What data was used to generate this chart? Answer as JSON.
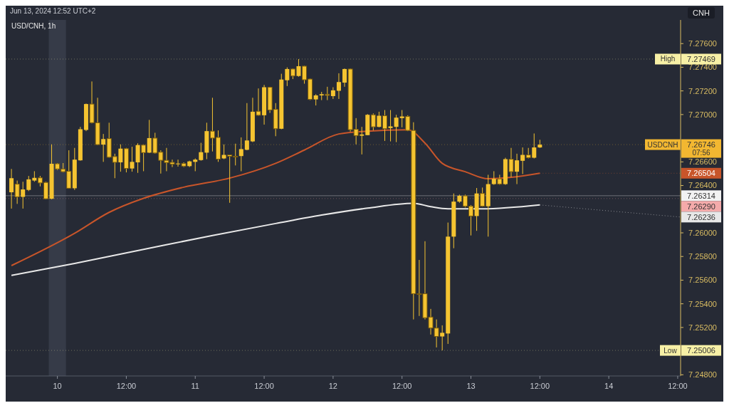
{
  "chart_data": {
    "type": "candlestick",
    "title": "USD/CNH, 1h",
    "subtitle": "Jun 13, 2024 12:52 UTC+2",
    "ylabel": "CNH",
    "color": "#f5c431",
    "x": [
      "2024-06-09T16:00",
      "2024-06-09T17:00",
      "2024-06-09T18:00",
      "2024-06-09T19:00",
      "2024-06-09T20:00",
      "2024-06-09T21:00",
      "2024-06-09T22:00",
      "2024-06-09T23:00",
      "2024-06-10T00:00",
      "2024-06-10T01:00",
      "2024-06-10T02:00",
      "2024-06-10T03:00",
      "2024-06-10T04:00",
      "2024-06-10T05:00",
      "2024-06-10T06:00",
      "2024-06-10T07:00",
      "2024-06-10T08:00",
      "2024-06-10T09:00",
      "2024-06-10T10:00",
      "2024-06-10T11:00",
      "2024-06-10T12:00",
      "2024-06-10T13:00",
      "2024-06-10T14:00",
      "2024-06-10T15:00",
      "2024-06-10T16:00",
      "2024-06-10T17:00",
      "2024-06-10T18:00",
      "2024-06-10T19:00",
      "2024-06-10T20:00",
      "2024-06-10T21:00",
      "2024-06-10T22:00",
      "2024-06-10T23:00",
      "2024-06-11T00:00",
      "2024-06-11T01:00",
      "2024-06-11T02:00",
      "2024-06-11T03:00",
      "2024-06-11T04:00",
      "2024-06-11T05:00",
      "2024-06-11T06:00",
      "2024-06-11T07:00",
      "2024-06-11T08:00",
      "2024-06-11T09:00",
      "2024-06-11T10:00",
      "2024-06-11T11:00",
      "2024-06-11T12:00",
      "2024-06-11T13:00",
      "2024-06-11T14:00",
      "2024-06-11T15:00",
      "2024-06-11T16:00",
      "2024-06-11T17:00",
      "2024-06-11T18:00",
      "2024-06-11T19:00",
      "2024-06-11T20:00",
      "2024-06-11T21:00",
      "2024-06-11T22:00",
      "2024-06-11T23:00",
      "2024-06-12T00:00",
      "2024-06-12T01:00",
      "2024-06-12T02:00",
      "2024-06-12T03:00",
      "2024-06-12T04:00",
      "2024-06-12T05:00",
      "2024-06-12T06:00",
      "2024-06-12T07:00",
      "2024-06-12T08:00",
      "2024-06-12T09:00",
      "2024-06-12T10:00",
      "2024-06-12T11:00",
      "2024-06-12T12:00",
      "2024-06-12T13:00",
      "2024-06-12T14:00",
      "2024-06-12T15:00",
      "2024-06-12T16:00",
      "2024-06-12T17:00",
      "2024-06-12T18:00",
      "2024-06-12T19:00",
      "2024-06-12T20:00",
      "2024-06-12T21:00",
      "2024-06-12T22:00",
      "2024-06-12T23:00",
      "2024-06-13T00:00",
      "2024-06-13T01:00",
      "2024-06-13T02:00",
      "2024-06-13T03:00",
      "2024-06-13T04:00",
      "2024-06-13T05:00",
      "2024-06-13T06:00",
      "2024-06-13T07:00",
      "2024-06-13T08:00",
      "2024-06-13T09:00",
      "2024-06-13T10:00",
      "2024-06-13T11:00",
      "2024-06-13T12:00"
    ],
    "ohlc": [
      [
        7.26343,
        7.2654,
        7.26205,
        7.26462
      ],
      [
        7.26412,
        7.26442,
        7.26245,
        7.26304
      ],
      [
        7.26304,
        7.26432,
        7.26205,
        7.26367
      ],
      [
        7.26363,
        7.26481,
        7.26353,
        7.26452
      ],
      [
        7.26442,
        7.26521,
        7.26432,
        7.26465
      ],
      [
        7.26465,
        7.26481,
        7.26393,
        7.26422
      ],
      [
        7.26426,
        7.26432,
        7.26284,
        7.26288
      ],
      [
        7.26288,
        7.26748,
        7.26284,
        7.26584
      ],
      [
        7.26584,
        7.2659,
        7.26531,
        7.2654
      ],
      [
        7.2654,
        7.2659,
        7.26511,
        7.26517
      ],
      [
        7.26521,
        7.26698,
        7.26373,
        7.26377
      ],
      [
        7.26377,
        7.26718,
        7.26363,
        7.26619
      ],
      [
        7.26613,
        7.26896,
        7.2661,
        7.26876
      ],
      [
        7.2687,
        7.27093,
        7.2686,
        7.27089
      ],
      [
        7.27089,
        7.2728,
        7.26925,
        7.26931
      ],
      [
        7.26931,
        7.27142,
        7.26742,
        7.26746
      ],
      [
        7.26746,
        7.26836,
        7.266,
        7.26793
      ],
      [
        7.26797,
        7.26931,
        7.26635,
        7.26639
      ],
      [
        7.26645,
        7.26669,
        7.26462,
        7.26596
      ],
      [
        7.26596,
        7.26748,
        7.26517,
        7.26712
      ],
      [
        7.26712,
        7.26718,
        7.26511,
        7.26544
      ],
      [
        7.26544,
        7.26728,
        7.26517,
        7.266
      ],
      [
        7.26596,
        7.26757,
        7.26507,
        7.26742
      ],
      [
        7.26742,
        7.26748,
        7.26521,
        7.26678
      ],
      [
        7.26678,
        7.26955,
        7.26675,
        7.26801
      ],
      [
        7.26801,
        7.26846,
        7.26669,
        7.26675
      ],
      [
        7.26682,
        7.26698,
        7.26501,
        7.26613
      ],
      [
        7.26613,
        7.26718,
        7.26521,
        7.26594
      ],
      [
        7.26596,
        7.26619,
        7.26556,
        7.2658
      ],
      [
        7.2658,
        7.26619,
        7.2656,
        7.26586
      ],
      [
        7.26586,
        7.26596,
        7.26556,
        7.26564
      ],
      [
        7.26564,
        7.2661,
        7.26556,
        7.26604
      ],
      [
        7.266,
        7.26629,
        7.26521,
        7.26619
      ],
      [
        7.26615,
        7.26761,
        7.2661,
        7.26682
      ],
      [
        7.26678,
        7.26931,
        7.26623,
        7.2686
      ],
      [
        7.2686,
        7.27142,
        7.26688,
        7.26801
      ],
      [
        7.26807,
        7.26866,
        7.266,
        7.26623
      ],
      [
        7.26629,
        7.26748,
        7.26623,
        7.26659
      ],
      [
        7.26659,
        7.26659,
        7.26254,
        7.26647
      ],
      [
        7.26647,
        7.26754,
        7.2657,
        7.26643
      ],
      [
        7.26649,
        7.26807,
        7.26521,
        7.26708
      ],
      [
        7.26702,
        7.27097,
        7.26698,
        7.26781
      ],
      [
        7.26773,
        7.27142,
        7.26767,
        7.27024
      ],
      [
        7.27028,
        7.27221,
        7.2699,
        7.26994
      ],
      [
        7.26994,
        7.27251,
        7.26915,
        7.27231
      ],
      [
        7.27231,
        7.27235,
        7.27014,
        7.27038
      ],
      [
        7.27044,
        7.27097,
        7.26817,
        7.2688
      ],
      [
        7.2688,
        7.27345,
        7.26876,
        7.27296
      ],
      [
        7.2729,
        7.27399,
        7.27241,
        7.27385
      ],
      [
        7.27385,
        7.27389,
        7.273,
        7.27326
      ],
      [
        7.27326,
        7.27469,
        7.2732,
        7.27409
      ],
      [
        7.27409,
        7.27413,
        7.27261,
        7.27294
      ],
      [
        7.273,
        7.27304,
        7.27122,
        7.27128
      ],
      [
        7.27128,
        7.27172,
        7.27077,
        7.27162
      ],
      [
        7.27162,
        7.27192,
        7.27122,
        7.27172
      ],
      [
        7.27172,
        7.27235,
        7.27122,
        7.27162
      ],
      [
        7.27156,
        7.27231,
        7.27132,
        7.27205
      ],
      [
        7.27201,
        7.27349,
        7.27132,
        7.27275
      ],
      [
        7.2727,
        7.27389,
        7.27235,
        7.27385
      ],
      [
        7.27385,
        7.27389,
        7.26856,
        7.26872
      ],
      [
        7.26876,
        7.2697,
        7.26748,
        7.26821
      ],
      [
        7.26821,
        7.26896,
        7.26663,
        7.26832
      ],
      [
        7.26826,
        7.27004,
        7.26826,
        7.26998
      ],
      [
        7.26998,
        7.2701,
        7.26866,
        7.26896
      ],
      [
        7.26896,
        7.27024,
        7.26892,
        7.2699
      ],
      [
        7.2699,
        7.27038,
        7.26777,
        7.2688
      ],
      [
        7.26886,
        7.27038,
        7.26773,
        7.269
      ],
      [
        7.26896,
        7.26998,
        7.26767,
        7.26974
      ],
      [
        7.2697,
        7.27038,
        7.26892,
        7.26984
      ],
      [
        7.26984,
        7.26994,
        7.2686,
        7.26866
      ],
      [
        7.26866,
        7.26935,
        7.25268,
        7.25485
      ],
      [
        7.25485,
        7.25771,
        7.25297,
        7.25479
      ],
      [
        7.25485,
        7.25929,
        7.25268,
        7.25282
      ],
      [
        7.25288,
        7.25357,
        7.2514,
        7.25195
      ],
      [
        7.25195,
        7.25268,
        7.25031,
        7.25124
      ],
      [
        7.25124,
        7.25218,
        7.25006,
        7.25155
      ],
      [
        7.25149,
        7.26087,
        7.25061,
        7.25968
      ],
      [
        7.25968,
        7.26333,
        7.2587,
        7.26264
      ],
      [
        7.26264,
        7.26323,
        7.26254,
        7.26313
      ],
      [
        7.26313,
        7.26323,
        7.26215,
        7.26225
      ],
      [
        7.26225,
        7.26235,
        7.25978,
        7.26142
      ],
      [
        7.26142,
        7.26379,
        7.26017,
        7.26333
      ],
      [
        7.26333,
        7.26383,
        7.26221,
        7.26225
      ],
      [
        7.26225,
        7.26491,
        7.25968,
        7.26412
      ],
      [
        7.26412,
        7.26521,
        7.26406,
        7.26457
      ],
      [
        7.26457,
        7.26491,
        7.26406,
        7.26412
      ],
      [
        7.26412,
        7.26635,
        7.26406,
        7.26623
      ],
      [
        7.26623,
        7.26718,
        7.26471,
        7.26517
      ],
      [
        7.26517,
        7.26669,
        7.26412,
        7.26613
      ],
      [
        7.26609,
        7.26722,
        7.26497,
        7.26659
      ],
      [
        7.26659,
        7.26718,
        7.26629,
        7.26635
      ],
      [
        7.26635,
        7.2684,
        7.26629,
        7.26722
      ],
      [
        7.26722,
        7.26787,
        7.26718,
        7.26746
      ]
    ],
    "series": [
      {
        "type": "line",
        "color": "#c8552a",
        "x": [
          "2024-06-09T16:00",
          "2024-06-10T03:00",
          "2024-06-10T09:00",
          "2024-06-10T15:00",
          "2024-06-10T22:00",
          "2024-06-11T06:00",
          "2024-06-11T14:00",
          "2024-06-11T19:00",
          "2024-06-12T01:00",
          "2024-06-12T06:00",
          "2024-06-12T13:00",
          "2024-06-12T16:00",
          "2024-06-12T19:00",
          "2024-06-12T23:00",
          "2024-06-13T03:00",
          "2024-06-13T07:00",
          "2024-06-13T12:00"
        ],
        "values": [
          7.25723,
          7.25996,
          7.26173,
          7.26292,
          7.26386,
          7.26463,
          7.26588,
          7.267,
          7.26836,
          7.2686,
          7.26872,
          7.26759,
          7.26588,
          7.26517,
          7.26457,
          7.26469,
          7.26504
        ]
      },
      {
        "type": "line",
        "color": "#e8e8e8",
        "x": [
          "2024-06-09T16:00",
          "2024-06-10T03:00",
          "2024-06-10T15:00",
          "2024-06-11T03:00",
          "2024-06-11T14:00",
          "2024-06-11T22:00",
          "2024-06-12T06:00",
          "2024-06-12T14:00",
          "2024-06-12T17:00",
          "2024-06-12T20:00",
          "2024-06-13T02:00",
          "2024-06-13T12:00"
        ],
        "values": [
          7.2564,
          7.25741,
          7.2586,
          7.25978,
          7.26079,
          7.2615,
          7.26209,
          7.2625,
          7.26221,
          7.26203,
          7.26203,
          7.26236
        ]
      }
    ],
    "xlim": [
      "2024-06-09T15:00",
      "2024-06-14T12:30"
    ],
    "xticks": [
      {
        "value": "2024-06-10T00:00",
        "label": "10"
      },
      {
        "value": "2024-06-10T12:00",
        "label": "12:00"
      },
      {
        "value": "2024-06-11T00:00",
        "label": "11"
      },
      {
        "value": "2024-06-11T12:00",
        "label": "12:00"
      },
      {
        "value": "2024-06-12T00:00",
        "label": "12"
      },
      {
        "value": "2024-06-12T12:00",
        "label": "12:00"
      },
      {
        "value": "2024-06-13T00:00",
        "label": "13"
      },
      {
        "value": "2024-06-13T12:00",
        "label": "12:00"
      },
      {
        "value": "2024-06-14T00:00",
        "label": "14"
      },
      {
        "value": "2024-06-14T12:00",
        "label": "12:00"
      }
    ],
    "ylim": [
      7.2479,
      7.278
    ],
    "yticks": [
      {
        "value": 7.248,
        "label": "7.24800"
      },
      {
        "value": 7.252,
        "label": "7.25200"
      },
      {
        "value": 7.254,
        "label": "7.25400"
      },
      {
        "value": 7.256,
        "label": "7.25600"
      },
      {
        "value": 7.258,
        "label": "7.25800"
      },
      {
        "value": 7.26,
        "label": "7.26000"
      },
      {
        "value": 7.264,
        "label": "7.26400"
      },
      {
        "value": 7.266,
        "label": "7.26600"
      },
      {
        "value": 7.27,
        "label": "7.27000"
      },
      {
        "value": 7.272,
        "label": "7.27200"
      },
      {
        "value": 7.274,
        "label": "7.27400"
      },
      {
        "value": 7.276,
        "label": "7.27600"
      }
    ],
    "bands": [
      {
        "axis": "x",
        "from": "2024-06-09T22:30",
        "to": "2024-06-10T01:30",
        "color": "#363b48"
      }
    ],
    "ref_lines": [
      {
        "axis": "y",
        "value": 7.27469,
        "label": "7.27469",
        "color": "#f7f0a6",
        "line_style": "dotted"
      },
      {
        "axis": "y",
        "value": 7.25006,
        "label": "7.25006",
        "color": "#f7f0a6",
        "line_style": "dotted"
      },
      {
        "axis": "y",
        "value": 7.26314,
        "label": "7.26314",
        "color": "#f2f2f2",
        "line_style": "solid"
      },
      {
        "axis": "y",
        "value": 7.2629,
        "label": "7.26290",
        "color": "#f4aaaa",
        "line_style": "dotted"
      },
      {
        "axis": "y",
        "value": 7.26746,
        "label": "7.26746",
        "color": "#f2b731",
        "line_style": "dotted"
      }
    ],
    "annotations": [
      {
        "text": "7.26504",
        "x": "2024-06-13T12:00",
        "y": 7.26504
      },
      {
        "text": "7.26236",
        "x": "2024-06-13T12:00",
        "y": 7.26236
      },
      {
        "text": "High",
        "y": 7.27469
      },
      {
        "text": "Low",
        "y": 7.25006
      },
      {
        "text": "USDCNH",
        "y": 7.26746
      },
      "07:56"
    ]
  }
}
